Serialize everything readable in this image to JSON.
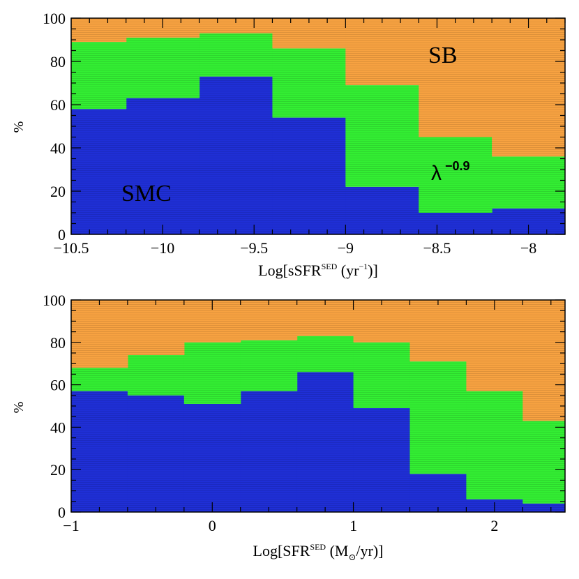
{
  "colors": {
    "SB": "#f7a241",
    "lambda": "#33ee33",
    "SMC": "#1f2fd6"
  },
  "chart_data": [
    {
      "type": "area",
      "stacked": true,
      "step": true,
      "title": "",
      "xlabel_parts": {
        "pre": "Log[sSFR",
        "sup": "SED",
        "mid": " (yr",
        "sup2": "−1",
        "post": ")]"
      },
      "ylabel": "%",
      "xlim": [
        -10.5,
        -7.8
      ],
      "ylim": [
        0,
        100
      ],
      "xticks": [
        -10.5,
        -10,
        -9.5,
        -9,
        -8.5,
        -8
      ],
      "xtick_labels": [
        "−10.5",
        "−10",
        "−9.5",
        "−9",
        "−8.5",
        "−8"
      ],
      "yticks": [
        0,
        20,
        40,
        60,
        80,
        100
      ],
      "ytick_labels": [
        "0",
        "20",
        "40",
        "60",
        "80",
        "100"
      ],
      "bin_edges": [
        -10.6,
        -10.2,
        -9.8,
        -9.4,
        -9.0,
        -8.6,
        -8.2,
        -7.8
      ],
      "series": [
        {
          "name": "SMC",
          "values": [
            58,
            63,
            73,
            54,
            22,
            10,
            12
          ]
        },
        {
          "name": "λ^-0.9",
          "values": [
            31,
            28,
            20,
            32,
            47,
            35,
            24
          ]
        },
        {
          "name": "SB",
          "values": [
            11,
            9,
            7,
            14,
            31,
            55,
            64
          ]
        }
      ],
      "annotations": {
        "SB": "SB",
        "SMC": "SMC",
        "lambda_base": "λ",
        "lambda_exp": "−0.9"
      }
    },
    {
      "type": "area",
      "stacked": true,
      "step": true,
      "title": "",
      "xlabel_parts": {
        "pre": "Log[SFR",
        "sup": "SED",
        "mid": " (M",
        "sub": "⊙",
        "post": "/yr)]"
      },
      "ylabel": "%",
      "xlim": [
        -1,
        2.5
      ],
      "ylim": [
        0,
        100
      ],
      "xticks": [
        -1,
        0,
        1,
        2
      ],
      "xtick_labels": [
        "−1",
        "0",
        "1",
        "2"
      ],
      "yticks": [
        0,
        20,
        40,
        60,
        80,
        100
      ],
      "ytick_labels": [
        "0",
        "20",
        "40",
        "60",
        "80",
        "100"
      ],
      "bin_edges": [
        -1.0,
        -0.6,
        -0.2,
        0.2,
        0.6,
        1.0,
        1.4,
        1.8,
        2.2,
        2.5
      ],
      "series": [
        {
          "name": "SMC",
          "values": [
            57,
            55,
            51,
            57,
            66,
            49,
            18,
            6,
            4
          ]
        },
        {
          "name": "λ^-0.9",
          "values": [
            11,
            19,
            29,
            24,
            17,
            31,
            53,
            51,
            39
          ]
        },
        {
          "name": "SB",
          "values": [
            32,
            26,
            20,
            19,
            17,
            20,
            29,
            43,
            57
          ]
        }
      ]
    }
  ]
}
